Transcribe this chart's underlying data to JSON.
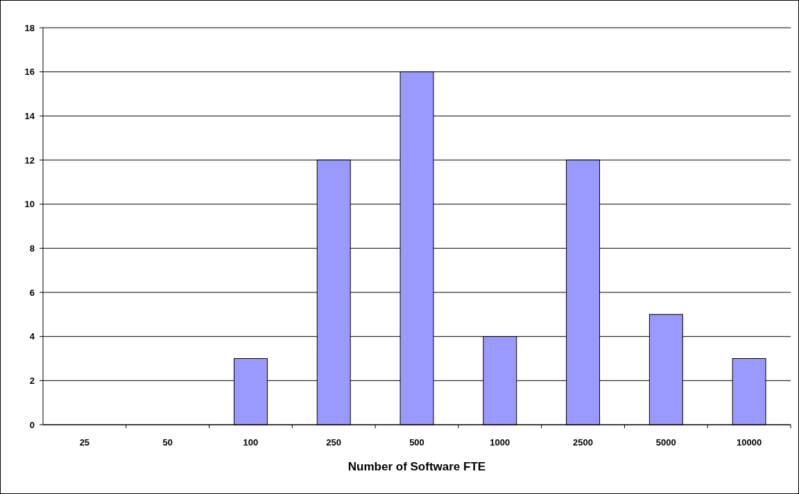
{
  "chart_data": {
    "type": "bar",
    "xlabel": "Number of Software FTE",
    "categories": [
      "25",
      "50",
      "100",
      "250",
      "500",
      "1000",
      "2500",
      "5000",
      "10000"
    ],
    "values": [
      0,
      0,
      3,
      12,
      16,
      4,
      12,
      5,
      3
    ],
    "color": "#9999ff",
    "ylim": [
      0,
      18
    ],
    "yticks": [
      0,
      2,
      4,
      6,
      8,
      10,
      12,
      14,
      16,
      18
    ],
    "grid": "y"
  }
}
